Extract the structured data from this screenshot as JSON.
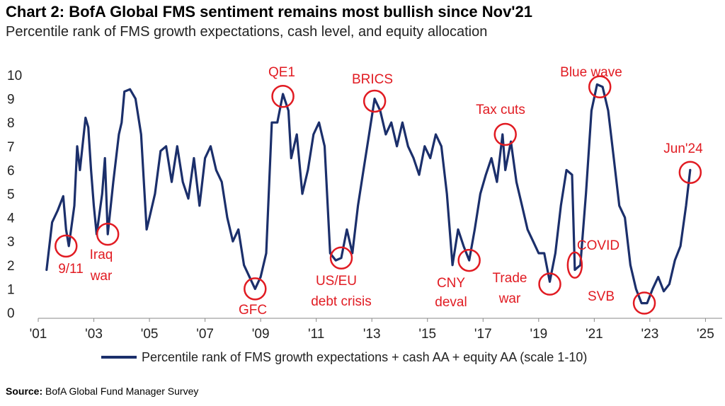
{
  "header": {
    "title": "Chart 2: BofA Global FMS sentiment remains most bullish since Nov'21",
    "subtitle": "Percentile rank of FMS growth expectations, cash level, and equity allocation"
  },
  "source": {
    "label": "Source:",
    "text": "BofA Global Fund Manager Survey"
  },
  "colors": {
    "series": "#1b2f6b",
    "annotation": "#e11b22"
  },
  "chart_data": {
    "type": "line",
    "title": "Chart 2: BofA Global FMS sentiment remains most bullish since Nov'21",
    "subtitle": "Percentile rank of FMS growth expectations, cash level, and equity allocation",
    "xlim": [
      2001,
      2025.6
    ],
    "ylim": [
      0,
      10
    ],
    "x_ticks": [
      {
        "x": 2001,
        "label": "'01"
      },
      {
        "x": 2003,
        "label": "'03"
      },
      {
        "x": 2005,
        "label": "'05"
      },
      {
        "x": 2007,
        "label": "'07"
      },
      {
        "x": 2009,
        "label": "'09"
      },
      {
        "x": 2011,
        "label": "'11"
      },
      {
        "x": 2013,
        "label": "'13"
      },
      {
        "x": 2015,
        "label": "'15"
      },
      {
        "x": 2017,
        "label": "'17"
      },
      {
        "x": 2019,
        "label": "'19"
      },
      {
        "x": 2021,
        "label": "'21"
      },
      {
        "x": 2023,
        "label": "'23"
      },
      {
        "x": 2025,
        "label": "'25"
      }
    ],
    "y_ticks": [
      0,
      1,
      2,
      3,
      4,
      5,
      6,
      7,
      8,
      9,
      10
    ],
    "grid": false,
    "legend": {
      "position": "bottom"
    },
    "series": [
      {
        "name": "Percentile rank of FMS growth expectations + cash AA + equity AA (scale 1-10)",
        "points": [
          [
            2001.3,
            1.8
          ],
          [
            2001.5,
            3.8
          ],
          [
            2001.7,
            4.3
          ],
          [
            2001.9,
            4.9
          ],
          [
            2002.0,
            3.5
          ],
          [
            2002.1,
            2.8
          ],
          [
            2002.3,
            4.5
          ],
          [
            2002.4,
            7.0
          ],
          [
            2002.5,
            6.0
          ],
          [
            2002.7,
            8.2
          ],
          [
            2002.8,
            7.8
          ],
          [
            2002.9,
            6.0
          ],
          [
            2003.0,
            4.5
          ],
          [
            2003.1,
            3.3
          ],
          [
            2003.3,
            5.0
          ],
          [
            2003.4,
            6.5
          ],
          [
            2003.5,
            3.3
          ],
          [
            2003.7,
            5.5
          ],
          [
            2003.9,
            7.5
          ],
          [
            2004.0,
            8.0
          ],
          [
            2004.1,
            9.3
          ],
          [
            2004.3,
            9.4
          ],
          [
            2004.5,
            9.0
          ],
          [
            2004.7,
            7.5
          ],
          [
            2004.9,
            3.5
          ],
          [
            2005.0,
            4.0
          ],
          [
            2005.2,
            5.0
          ],
          [
            2005.4,
            6.8
          ],
          [
            2005.6,
            7.0
          ],
          [
            2005.8,
            5.5
          ],
          [
            2006.0,
            7.0
          ],
          [
            2006.2,
            5.5
          ],
          [
            2006.4,
            4.8
          ],
          [
            2006.6,
            6.5
          ],
          [
            2006.8,
            4.5
          ],
          [
            2007.0,
            6.5
          ],
          [
            2007.2,
            7.0
          ],
          [
            2007.4,
            6.0
          ],
          [
            2007.6,
            5.5
          ],
          [
            2007.8,
            4.0
          ],
          [
            2008.0,
            3.0
          ],
          [
            2008.2,
            3.5
          ],
          [
            2008.4,
            2.0
          ],
          [
            2008.6,
            1.5
          ],
          [
            2008.8,
            1.0
          ],
          [
            2009.0,
            1.5
          ],
          [
            2009.2,
            2.5
          ],
          [
            2009.4,
            8.0
          ],
          [
            2009.6,
            8.0
          ],
          [
            2009.8,
            9.2
          ],
          [
            2010.0,
            8.5
          ],
          [
            2010.1,
            6.5
          ],
          [
            2010.3,
            7.5
          ],
          [
            2010.5,
            5.0
          ],
          [
            2010.7,
            6.0
          ],
          [
            2010.9,
            7.5
          ],
          [
            2011.1,
            8.0
          ],
          [
            2011.3,
            7.0
          ],
          [
            2011.5,
            2.5
          ],
          [
            2011.7,
            2.2
          ],
          [
            2011.9,
            2.3
          ],
          [
            2012.1,
            3.5
          ],
          [
            2012.3,
            2.5
          ],
          [
            2012.5,
            4.5
          ],
          [
            2012.7,
            6.0
          ],
          [
            2012.9,
            7.5
          ],
          [
            2013.1,
            9.0
          ],
          [
            2013.3,
            8.5
          ],
          [
            2013.5,
            7.5
          ],
          [
            2013.7,
            8.0
          ],
          [
            2013.9,
            7.0
          ],
          [
            2014.1,
            8.0
          ],
          [
            2014.3,
            7.0
          ],
          [
            2014.5,
            6.5
          ],
          [
            2014.7,
            5.8
          ],
          [
            2014.9,
            7.0
          ],
          [
            2015.1,
            6.5
          ],
          [
            2015.3,
            7.5
          ],
          [
            2015.5,
            7.0
          ],
          [
            2015.7,
            5.0
          ],
          [
            2015.9,
            2.0
          ],
          [
            2016.1,
            3.5
          ],
          [
            2016.3,
            2.8
          ],
          [
            2016.5,
            2.2
          ],
          [
            2016.7,
            3.5
          ],
          [
            2016.9,
            5.0
          ],
          [
            2017.1,
            5.8
          ],
          [
            2017.3,
            6.5
          ],
          [
            2017.5,
            5.5
          ],
          [
            2017.7,
            7.5
          ],
          [
            2017.8,
            6.0
          ],
          [
            2018.0,
            7.2
          ],
          [
            2018.2,
            5.5
          ],
          [
            2018.4,
            4.5
          ],
          [
            2018.6,
            3.5
          ],
          [
            2018.8,
            3.0
          ],
          [
            2019.0,
            2.5
          ],
          [
            2019.2,
            2.5
          ],
          [
            2019.4,
            1.3
          ],
          [
            2019.6,
            2.5
          ],
          [
            2019.8,
            4.5
          ],
          [
            2020.0,
            6.0
          ],
          [
            2020.2,
            5.8
          ],
          [
            2020.3,
            1.8
          ],
          [
            2020.5,
            2.0
          ],
          [
            2020.7,
            5.0
          ],
          [
            2020.9,
            8.5
          ],
          [
            2021.1,
            9.6
          ],
          [
            2021.3,
            9.5
          ],
          [
            2021.5,
            8.5
          ],
          [
            2021.7,
            6.5
          ],
          [
            2021.9,
            4.5
          ],
          [
            2022.1,
            4.0
          ],
          [
            2022.3,
            2.0
          ],
          [
            2022.5,
            1.0
          ],
          [
            2022.7,
            0.4
          ],
          [
            2022.9,
            0.4
          ],
          [
            2023.1,
            1.0
          ],
          [
            2023.3,
            1.5
          ],
          [
            2023.5,
            0.9
          ],
          [
            2023.7,
            1.2
          ],
          [
            2023.9,
            2.2
          ],
          [
            2024.1,
            2.8
          ],
          [
            2024.3,
            4.5
          ],
          [
            2024.45,
            6.0
          ]
        ]
      }
    ],
    "annotations": [
      {
        "label": "9/11",
        "x": 2002.0,
        "y": 2.8
      },
      {
        "label": "Iraq war",
        "x": 2003.5,
        "y": 3.3
      },
      {
        "label": "GFC",
        "x": 2008.8,
        "y": 1.0
      },
      {
        "label": "QE1",
        "x": 2009.8,
        "y": 9.1
      },
      {
        "label": "US/EU debt crisis",
        "x": 2011.9,
        "y": 2.3
      },
      {
        "label": "BRICS",
        "x": 2013.1,
        "y": 8.9
      },
      {
        "label": "CNY deval",
        "x": 2016.5,
        "y": 2.2
      },
      {
        "label": "Tax cuts",
        "x": 2017.8,
        "y": 7.5
      },
      {
        "label": "Trade war",
        "x": 2019.4,
        "y": 1.2
      },
      {
        "label": "COVID",
        "x": 2020.3,
        "y": 2.0
      },
      {
        "label": "Blue wave",
        "x": 2021.2,
        "y": 9.5
      },
      {
        "label": "SVB",
        "x": 2022.8,
        "y": 0.4
      },
      {
        "label": "Jun'24",
        "x": 2024.45,
        "y": 5.9
      }
    ]
  }
}
